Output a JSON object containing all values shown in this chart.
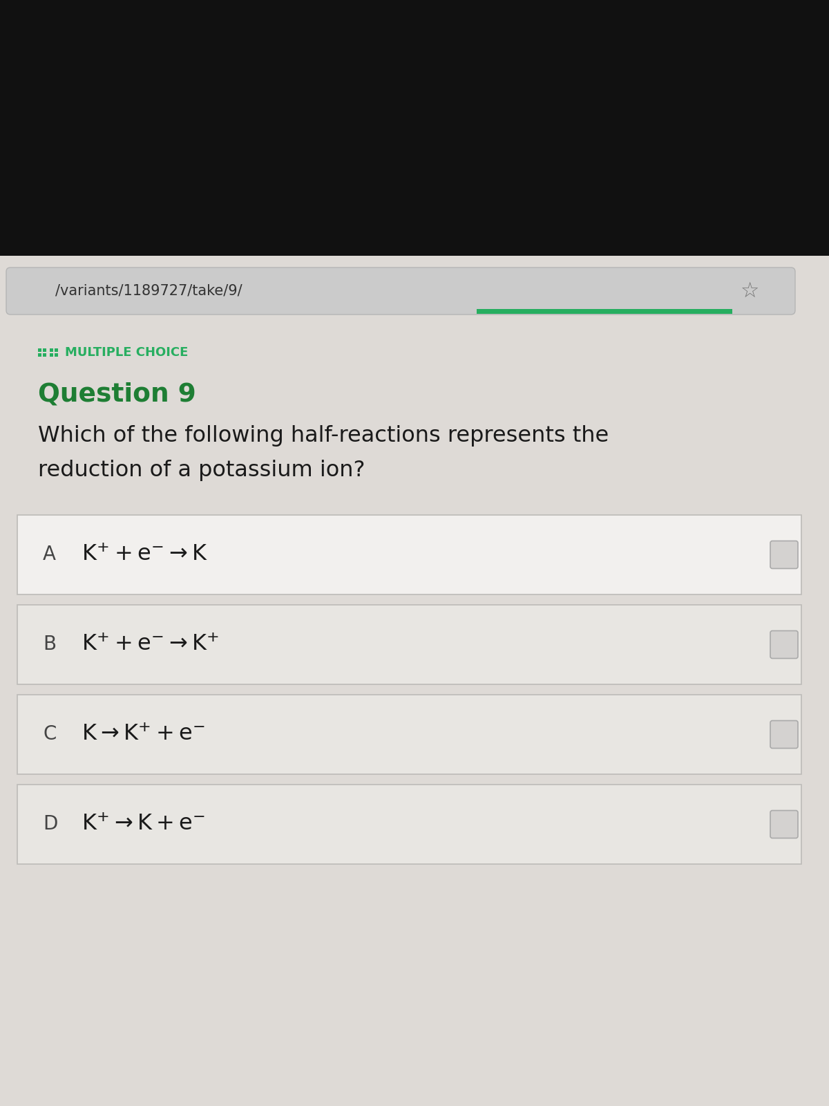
{
  "bg_top_color": "#111111",
  "page_bg_color": "#dedad6",
  "browser_bar_color": "#c8c8c8",
  "url_text": "/variants/1189727/take/9/",
  "url_color": "#333333",
  "section_label": "MULTIPLE CHOICE",
  "section_label_color": "#27ae60",
  "question_label": "Question 9",
  "question_label_color": "#1e7e34",
  "question_text_line1": "Which of the following half-reactions represents the",
  "question_text_line2": "reduction of a potassium ion?",
  "question_text_color": "#1a1a1a",
  "answer_bg_A": "#f2f0ee",
  "answer_bg_BCD": "#e8e6e2",
  "answer_border_color": "#c0bebb",
  "answer_text_color": "#1a1a1a",
  "option_letter_color": "#444444",
  "green_bar_color": "#27ae60",
  "checkbox_bg": "#d4d2d0",
  "checkbox_border": "#aaaaaa",
  "option_letters": [
    "A",
    "B",
    "C",
    "D"
  ]
}
